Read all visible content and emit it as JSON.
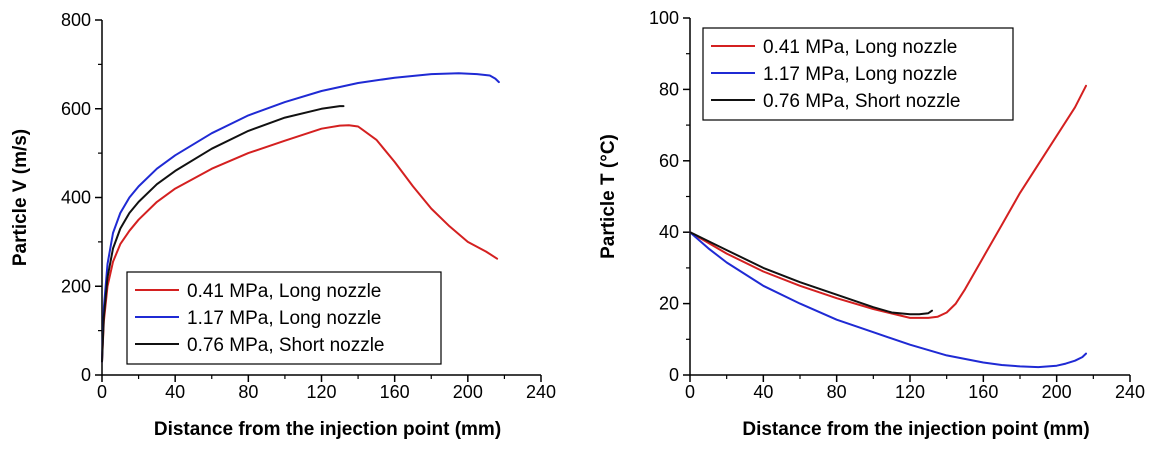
{
  "chart_data": [
    {
      "type": "line",
      "title": "",
      "xlabel": "Distance from the injection point (mm)",
      "ylabel": "Particle V (m/s)",
      "xlim": [
        0,
        240
      ],
      "ylim": [
        0,
        800
      ],
      "xticks": [
        0,
        40,
        80,
        120,
        160,
        200,
        240
      ],
      "yticks": [
        0,
        200,
        400,
        600,
        800
      ],
      "grid": false,
      "legend_position": "bottom-left",
      "series": [
        {
          "name": "0.41 MPa, Long nozzle",
          "color": "#d42020",
          "x": [
            0,
            1,
            3,
            6,
            10,
            15,
            20,
            30,
            40,
            60,
            80,
            100,
            120,
            130,
            135,
            140,
            150,
            160,
            170,
            180,
            190,
            200,
            210,
            216
          ],
          "y": [
            30,
            120,
            200,
            255,
            295,
            325,
            350,
            390,
            420,
            465,
            500,
            528,
            555,
            562,
            563,
            560,
            530,
            480,
            425,
            375,
            335,
            300,
            278,
            262
          ]
        },
        {
          "name": "1.17 MPa, Long nozzle",
          "color": "#1f2ad4",
          "x": [
            0,
            1,
            3,
            6,
            10,
            15,
            20,
            30,
            40,
            60,
            80,
            100,
            120,
            140,
            160,
            180,
            195,
            205,
            212,
            215,
            217
          ],
          "y": [
            30,
            150,
            250,
            320,
            365,
            400,
            425,
            465,
            495,
            545,
            585,
            615,
            640,
            658,
            670,
            678,
            680,
            678,
            675,
            668,
            660
          ]
        },
        {
          "name": "0.76 MPa, Short nozzle",
          "color": "#111111",
          "x": [
            0,
            1,
            3,
            6,
            10,
            15,
            20,
            30,
            40,
            60,
            80,
            100,
            120,
            130,
            132
          ],
          "y": [
            30,
            130,
            220,
            285,
            330,
            365,
            390,
            430,
            460,
            510,
            550,
            580,
            600,
            606,
            606
          ]
        }
      ]
    },
    {
      "type": "line",
      "title": "",
      "xlabel": "Distance from the injection point (mm)",
      "ylabel": "Particle T (°C)",
      "xlim": [
        0,
        240
      ],
      "ylim": [
        0,
        100
      ],
      "xticks": [
        0,
        40,
        80,
        120,
        160,
        200,
        240
      ],
      "yticks": [
        0,
        20,
        40,
        60,
        80,
        100
      ],
      "grid": false,
      "legend_position": "top-left",
      "series": [
        {
          "name": "0.41 MPa, Long nozzle",
          "color": "#d42020",
          "x": [
            0,
            10,
            20,
            40,
            60,
            80,
            100,
            120,
            130,
            135,
            140,
            145,
            150,
            160,
            170,
            180,
            190,
            200,
            210,
            216
          ],
          "y": [
            40,
            37,
            34,
            29,
            25,
            21.5,
            18.5,
            16,
            16,
            16.3,
            17.5,
            20,
            24,
            33,
            42,
            51,
            59,
            67,
            75,
            81
          ]
        },
        {
          "name": "1.17 MPa, Long nozzle",
          "color": "#1f2ad4",
          "x": [
            0,
            10,
            20,
            40,
            60,
            80,
            100,
            120,
            140,
            160,
            170,
            180,
            190,
            200,
            205,
            210,
            214,
            216
          ],
          "y": [
            40,
            35.5,
            31.5,
            25,
            20,
            15.5,
            12,
            8.5,
            5.5,
            3.5,
            2.8,
            2.4,
            2.2,
            2.6,
            3.2,
            4,
            5,
            6
          ]
        },
        {
          "name": "0.76 MPa, Short nozzle",
          "color": "#111111",
          "x": [
            0,
            10,
            20,
            40,
            60,
            80,
            100,
            110,
            120,
            125,
            130,
            132
          ],
          "y": [
            40,
            37.5,
            35,
            30,
            26,
            22.5,
            19,
            17.5,
            17,
            17,
            17.3,
            18
          ]
        }
      ]
    }
  ]
}
